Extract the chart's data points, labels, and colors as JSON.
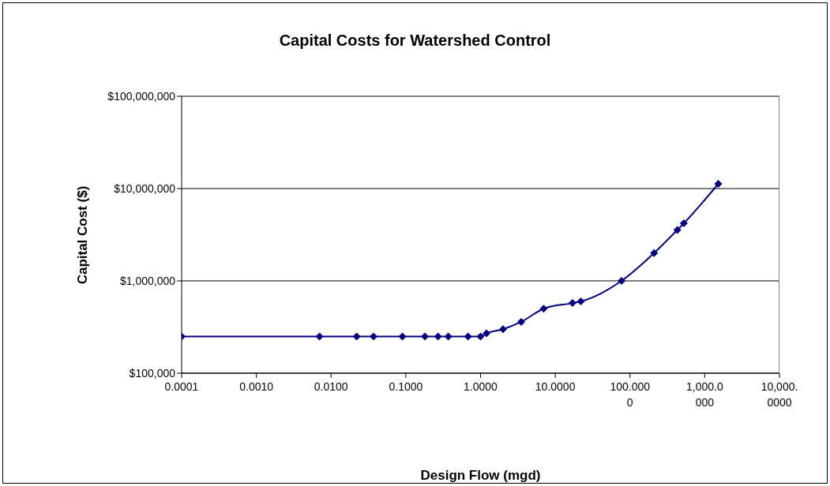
{
  "chart_data": {
    "type": "line",
    "title": "Capital Costs for Watershed Control",
    "xlabel": "Design Flow (mgd)",
    "ylabel": "Capital Cost ($)",
    "x": [
      0.0001,
      0.007,
      0.022,
      0.037,
      0.09,
      0.18,
      0.27,
      0.37,
      0.68,
      1.0,
      1.2,
      2.0,
      3.5,
      7.0,
      17,
      22,
      77,
      210,
      430,
      525,
      1520
    ],
    "series": [
      {
        "color": "#000080",
        "values": [
          250000,
          250000,
          250000,
          250000,
          250000,
          250000,
          250000,
          250000,
          250000,
          250000,
          270000,
          300000,
          360000,
          500000,
          575000,
          600000,
          1000000,
          2000000,
          3560000,
          4200000,
          11250000
        ]
      }
    ],
    "log": "xy",
    "xlim": [
      0.0001,
      10000
    ],
    "xticks": [
      {
        "value": 0.0001,
        "label": "0.0001"
      },
      {
        "value": 0.001,
        "label": "0.0010"
      },
      {
        "value": 0.01,
        "label": "0.0100"
      },
      {
        "value": 0.1,
        "label": "0.1000"
      },
      {
        "value": 1,
        "label": "1.0000"
      },
      {
        "value": 10,
        "label": "10.0000"
      },
      {
        "value": 100,
        "label": "100.0000"
      },
      {
        "value": 1000,
        "label": "1,000.0000"
      },
      {
        "value": 10000,
        "label": "10,000.0000"
      }
    ],
    "ylim": [
      100000,
      100000000
    ],
    "yticks": [
      {
        "value": 100000,
        "label": "$100,000"
      },
      {
        "value": 1000000,
        "label": "$1,000,000"
      },
      {
        "value": 10000000,
        "label": "$10,000,000"
      },
      {
        "value": 100000000,
        "label": "$100,000,000"
      }
    ],
    "grid": "y",
    "legend": false,
    "marker": "diamond",
    "line_style": "solid"
  }
}
